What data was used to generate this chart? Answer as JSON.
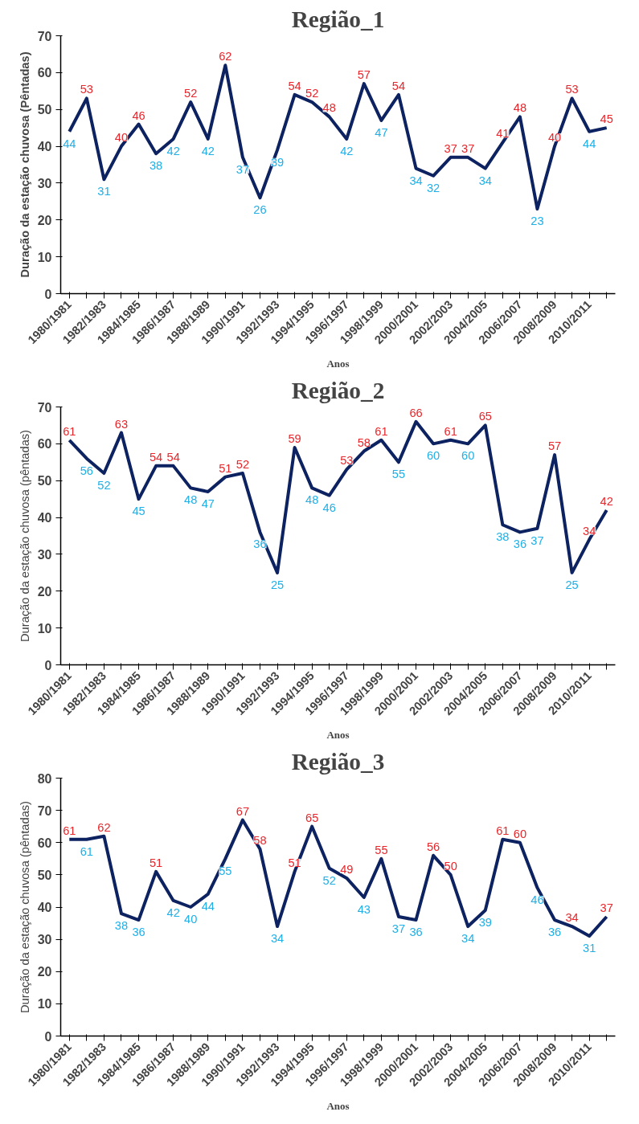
{
  "chart_data": [
    {
      "type": "line",
      "title": "Região_1",
      "xlabel": "Anos",
      "ylabel": "Duração da estação chuvosa (Pêntadas)",
      "categories": [
        "1980/1981",
        null,
        "1982/1983",
        null,
        "1984/1985",
        null,
        "1986/1987",
        null,
        "1988/1989",
        null,
        "1990/1991",
        null,
        "1992/1993",
        null,
        "1994/1995",
        null,
        "1996/1997",
        null,
        "1998/1999",
        null,
        "2000/2001",
        null,
        "2002/2003",
        null,
        "2004/2005",
        null,
        "2006/2007",
        null,
        "2008/2009",
        null,
        "2010/2011",
        null
      ],
      "series": [
        {
          "color": "#0d2260",
          "values": [
            44,
            53,
            31,
            40,
            46,
            38,
            42,
            52,
            42,
            62,
            37,
            26,
            39,
            54,
            52,
            48,
            42,
            57,
            47,
            54,
            34,
            32,
            37,
            37,
            34,
            41,
            48,
            23,
            40,
            53,
            44,
            45
          ]
        }
      ],
      "ylim": [
        0,
        70
      ],
      "yticks": [
        0,
        10,
        20,
        30,
        40,
        50,
        60,
        70
      ],
      "data_labels": true,
      "grid": false,
      "marker": "none",
      "line_style": "solid"
    },
    {
      "type": "line",
      "title": "Região_2",
      "xlabel": "Anos",
      "ylabel": "Duração da estação chuvosa (pêntadas)",
      "categories": [
        "1980/1981",
        null,
        "1982/1983",
        null,
        "1984/1985",
        null,
        "1986/1987",
        null,
        "1988/1989",
        null,
        "1990/1991",
        null,
        "1992/1993",
        null,
        "1994/1995",
        null,
        "1996/1997",
        null,
        "1998/1999",
        null,
        "2000/2001",
        null,
        "2002/2003",
        null,
        "2004/2005",
        null,
        "2006/2007",
        null,
        "2008/2009",
        null,
        "2010/2011",
        null
      ],
      "series": [
        {
          "color": "#0d2260",
          "values": [
            61,
            56,
            52,
            63,
            45,
            54,
            54,
            48,
            47,
            51,
            52,
            36,
            25,
            59,
            48,
            46,
            53,
            58,
            61,
            55,
            66,
            60,
            61,
            60,
            65,
            38,
            36,
            37,
            57,
            25,
            34,
            42
          ]
        }
      ],
      "ylim": [
        0,
        70
      ],
      "yticks": [
        0,
        10,
        20,
        30,
        40,
        50,
        60,
        70
      ],
      "data_labels": true,
      "grid": false,
      "marker": "none",
      "line_style": "solid"
    },
    {
      "type": "line",
      "title": "Região_3",
      "xlabel": "Anos",
      "ylabel": "Duração da estação chuvosa (pêntadas)",
      "categories": [
        "1980/1981",
        null,
        "1982/1983",
        null,
        "1984/1985",
        null,
        "1986/1987",
        null,
        "1988/1989",
        null,
        "1990/1991",
        null,
        "1992/1993",
        null,
        "1994/1995",
        null,
        "1996/1997",
        null,
        "1998/1999",
        null,
        "2000/2001",
        null,
        "2002/2003",
        null,
        "2004/2005",
        null,
        "2006/2007",
        null,
        "2008/2009",
        null,
        "2010/2011",
        null
      ],
      "series": [
        {
          "color": "#0d2260",
          "values": [
            61,
            61,
            62,
            38,
            36,
            51,
            42,
            40,
            44,
            55,
            67,
            58,
            34,
            51,
            65,
            52,
            49,
            43,
            55,
            37,
            36,
            56,
            50,
            34,
            39,
            61,
            60,
            46,
            36,
            34,
            31,
            37
          ]
        }
      ],
      "ylim": [
        0,
        80
      ],
      "yticks": [
        0,
        10,
        20,
        30,
        40,
        50,
        60,
        70,
        80
      ],
      "data_labels": true,
      "grid": false,
      "marker": "none",
      "line_style": "solid"
    }
  ]
}
